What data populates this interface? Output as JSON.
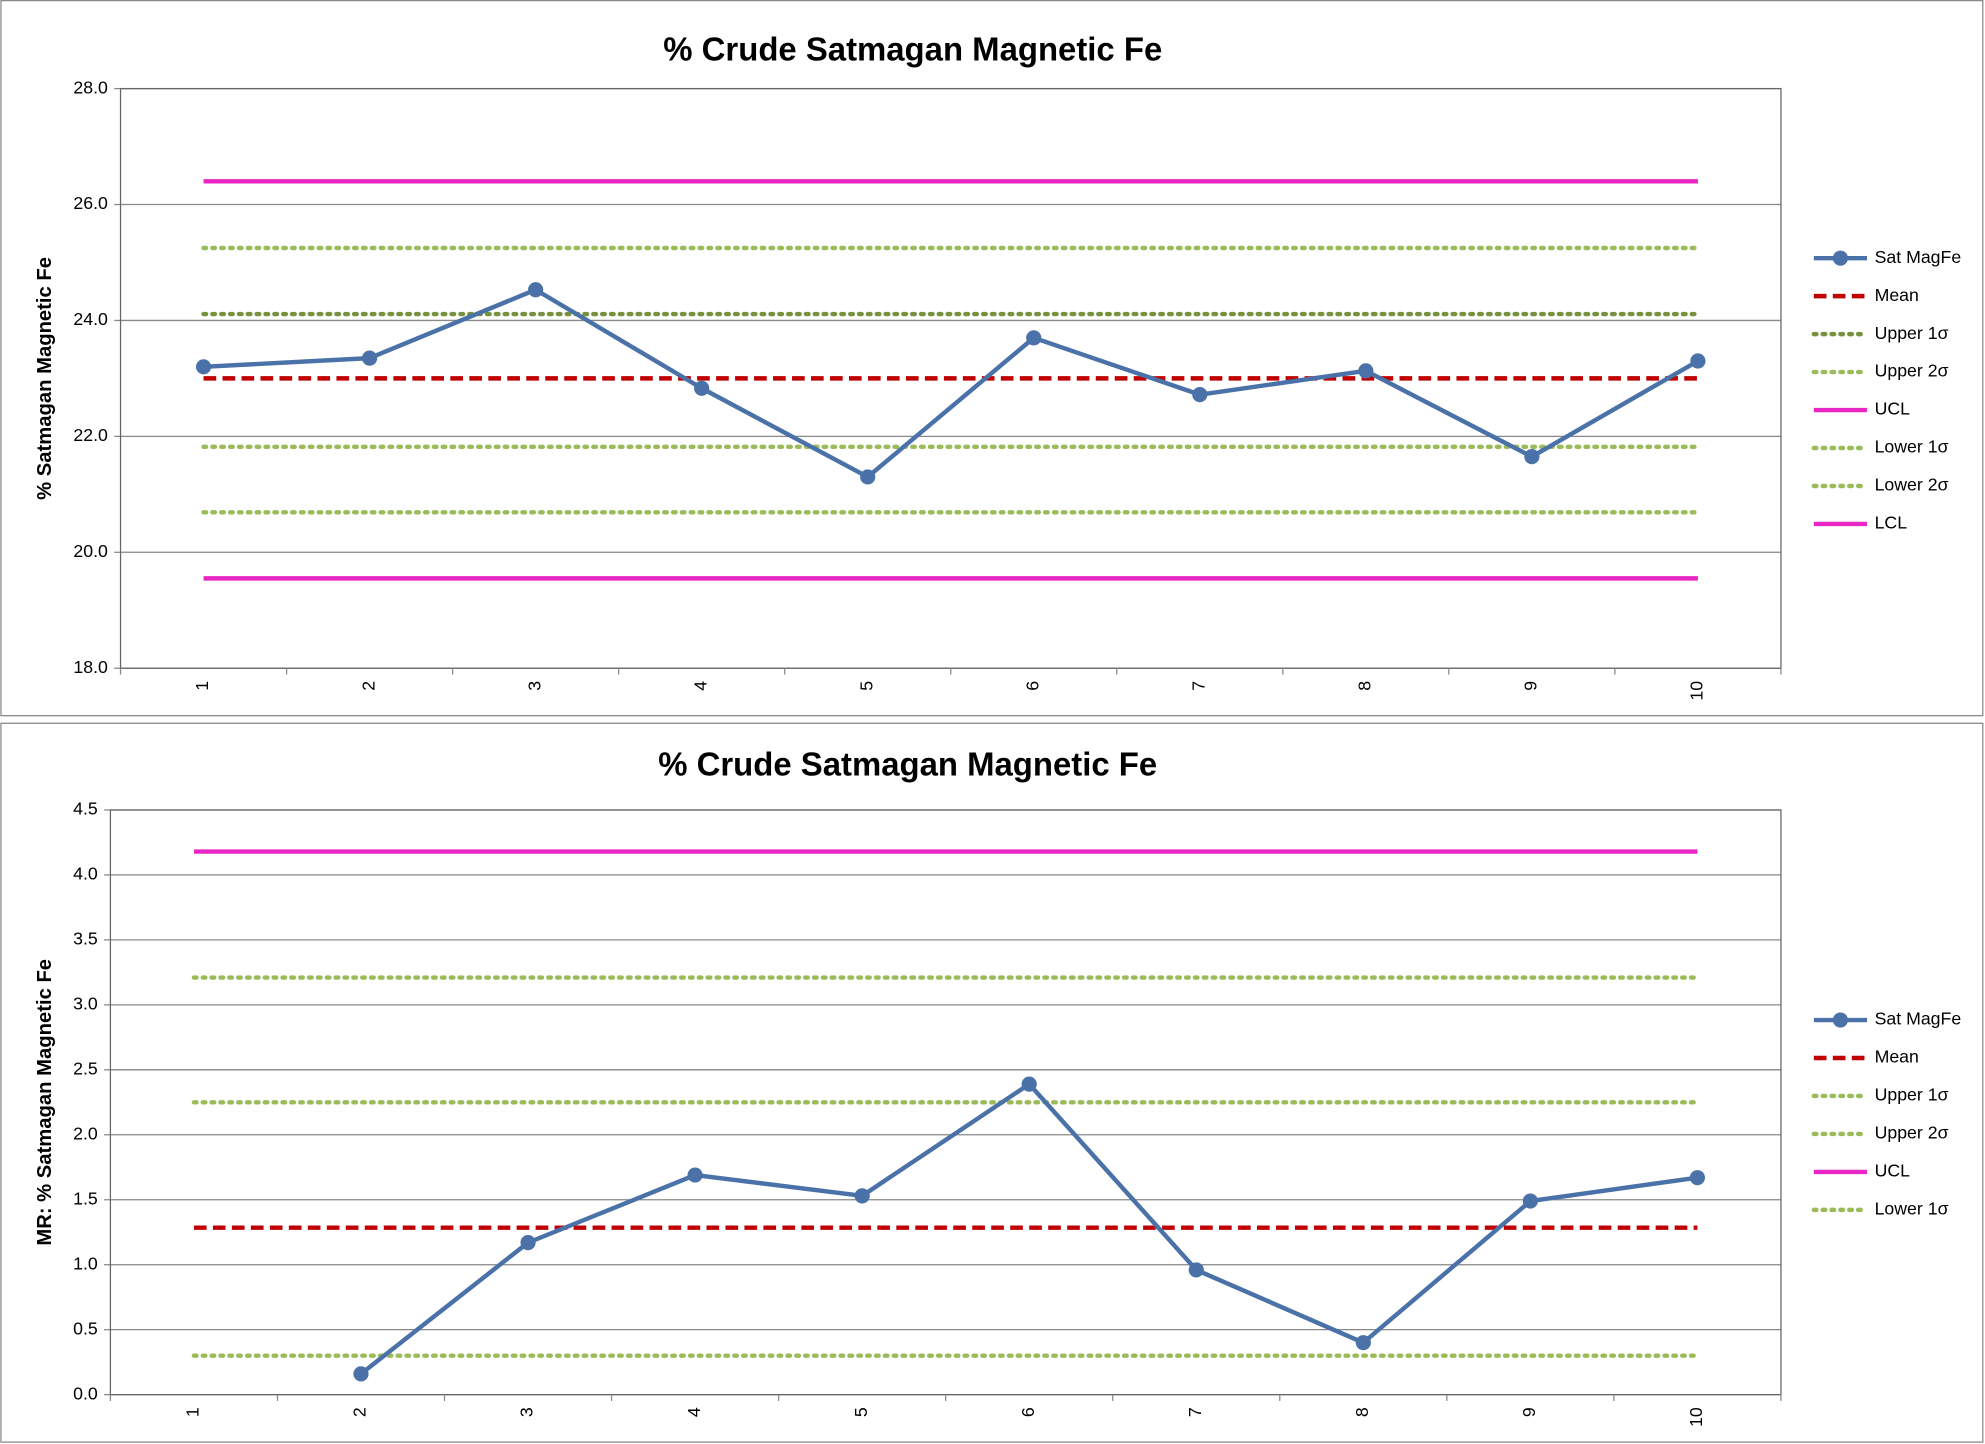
{
  "chart_data": [
    {
      "type": "line",
      "title": "% Crude Satmagan Magnetic Fe",
      "y_label": "% Satmagan Magnetic Fe",
      "categories": [
        "1",
        "2",
        "3",
        "4",
        "5",
        "6",
        "7",
        "8",
        "9",
        "10"
      ],
      "ylim": [
        18,
        28
      ],
      "yticks": [
        {
          "value": 18,
          "label": "18.0"
        },
        {
          "value": 20,
          "label": "20.0"
        },
        {
          "value": 22,
          "label": "22.0"
        },
        {
          "value": 24,
          "label": "24.0"
        },
        {
          "value": 26,
          "label": "26.0"
        },
        {
          "value": 28,
          "label": "28.0"
        }
      ],
      "grid": true,
      "legend": "right",
      "series": [
        {
          "name": "Sat MagFe",
          "color": "#4a72a8",
          "style": "solid",
          "marker": true,
          "values": [
            23.2,
            23.35,
            24.53,
            22.83,
            21.3,
            23.7,
            22.72,
            23.13,
            21.65,
            23.3
          ]
        },
        {
          "name": "Mean",
          "color": "#c00000",
          "style": "dashed",
          "values": [
            23.0,
            23.0,
            23.0,
            23.0,
            23.0,
            23.0,
            23.0,
            23.0,
            23.0,
            23.0
          ]
        },
        {
          "name": "Upper 1σ",
          "color": "#76923c",
          "style": "dotted",
          "values": [
            24.11,
            24.11,
            24.11,
            24.11,
            24.11,
            24.11,
            24.11,
            24.11,
            24.11,
            24.11
          ]
        },
        {
          "name": "Upper 2σ",
          "color": "#9bbb59",
          "style": "dotted",
          "values": [
            25.25,
            25.25,
            25.25,
            25.25,
            25.25,
            25.25,
            25.25,
            25.25,
            25.25,
            25.25
          ]
        },
        {
          "name": "UCL",
          "color": "#e926c4",
          "style": "solid",
          "values": [
            26.4,
            26.4,
            26.4,
            26.4,
            26.4,
            26.4,
            26.4,
            26.4,
            26.4,
            26.4
          ]
        },
        {
          "name": "Lower 1σ",
          "color": "#9bbb59",
          "style": "dotted",
          "values": [
            21.82,
            21.82,
            21.82,
            21.82,
            21.82,
            21.82,
            21.82,
            21.82,
            21.82,
            21.82
          ]
        },
        {
          "name": "Lower 2σ",
          "color": "#9bbb59",
          "style": "dotted",
          "values": [
            20.69,
            20.69,
            20.69,
            20.69,
            20.69,
            20.69,
            20.69,
            20.69,
            20.69,
            20.69
          ]
        },
        {
          "name": "LCL",
          "color": "#e926c4",
          "style": "solid",
          "values": [
            19.55,
            19.55,
            19.55,
            19.55,
            19.55,
            19.55,
            19.55,
            19.55,
            19.55,
            19.55
          ]
        }
      ]
    },
    {
      "type": "line",
      "title": "% Crude Satmagan Magnetic Fe",
      "y_label": "MR: % Satmagan Magnetic Fe",
      "categories": [
        "1",
        "2",
        "3",
        "4",
        "5",
        "6",
        "7",
        "8",
        "9",
        "10"
      ],
      "ylim": [
        0,
        4.5
      ],
      "yticks": [
        {
          "value": 0,
          "label": "0.0"
        },
        0.5,
        {
          "value": 1,
          "label": "1.0"
        },
        1.5,
        {
          "value": 2,
          "label": "2.0"
        },
        2.5,
        {
          "value": 3,
          "label": "3.0"
        },
        3.5,
        {
          "value": 4,
          "label": "4.0"
        },
        4.5
      ],
      "grid": true,
      "legend": "right",
      "series": [
        {
          "name": "Sat MagFe",
          "color": "#4a72a8",
          "style": "solid",
          "marker": true,
          "values": [
            null,
            0.16,
            1.17,
            1.69,
            1.53,
            2.39,
            0.96,
            0.4,
            1.49,
            1.67
          ]
        },
        {
          "name": "Mean",
          "color": "#c00000",
          "style": "dashed",
          "values": [
            1.285,
            1.285,
            1.285,
            1.285,
            1.285,
            1.285,
            1.285,
            1.285,
            1.285,
            1.285
          ]
        },
        {
          "name": "Upper 1σ",
          "color": "#9bbb59",
          "style": "dotted",
          "values": [
            2.25,
            2.25,
            2.25,
            2.25,
            2.25,
            2.25,
            2.25,
            2.25,
            2.25,
            2.25
          ]
        },
        {
          "name": "Upper 2σ",
          "color": "#9bbb59",
          "style": "dotted",
          "values": [
            3.21,
            3.21,
            3.21,
            3.21,
            3.21,
            3.21,
            3.21,
            3.21,
            3.21,
            3.21
          ]
        },
        {
          "name": "UCL",
          "color": "#e926c4",
          "style": "solid",
          "values": [
            4.18,
            4.18,
            4.18,
            4.18,
            4.18,
            4.18,
            4.18,
            4.18,
            4.18,
            4.18
          ]
        },
        {
          "name": "Lower 1σ",
          "color": "#9bbb59",
          "style": "dotted",
          "values": [
            0.3,
            0.3,
            0.3,
            0.3,
            0.3,
            0.3,
            0.3,
            0.3,
            0.3,
            0.3
          ]
        }
      ]
    }
  ]
}
